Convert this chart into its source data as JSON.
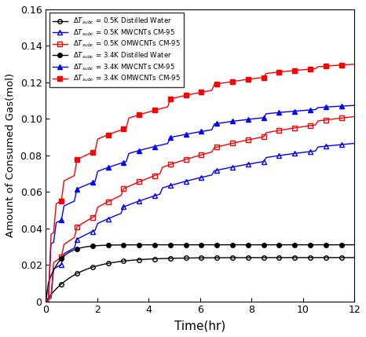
{
  "xlabel": "Time(hr)",
  "ylabel": "Amount of Consumed Gas(mol)",
  "xlim": [
    0,
    12
  ],
  "ylim": [
    0,
    0.16
  ],
  "yticks": [
    0,
    0.02,
    0.04,
    0.06,
    0.08,
    0.1,
    0.12,
    0.14,
    0.16
  ],
  "xticks": [
    0,
    2,
    4,
    6,
    8,
    10,
    12
  ],
  "legend_labels": [
    "$\\Delta T_{subc}$ = 0.5K Distilled Water",
    "$\\Delta T_{subc}$ = 0.5K MWCNTs CM-95",
    "$\\Delta T_{subc}$ = 0.5K OMWCNTs CM-95",
    "$\\Delta T_{subc}$ = 3.4K Distilled Water",
    "$\\Delta T_{subc}$ = 3.4K MWCNTs CM-95",
    "$\\Delta T_{subc}$ = 3.4K OMWCNTs CM-95"
  ],
  "series": {
    "dw_05": {
      "color": "black",
      "marker": "o",
      "filled": false,
      "lw": 1.0,
      "ms": 4
    },
    "mwcnt_05": {
      "color": "blue",
      "marker": "^",
      "filled": false,
      "lw": 1.0,
      "ms": 4
    },
    "omwcnt_05": {
      "color": "red",
      "marker": "s",
      "filled": false,
      "lw": 1.0,
      "ms": 4
    },
    "dw_34": {
      "color": "black",
      "marker": "o",
      "filled": true,
      "lw": 1.0,
      "ms": 4
    },
    "mwcnt_34": {
      "color": "blue",
      "marker": "^",
      "filled": true,
      "lw": 1.0,
      "ms": 4
    },
    "omwcnt_34": {
      "color": "red",
      "marker": "s",
      "filled": true,
      "lw": 1.0,
      "ms": 4
    }
  }
}
